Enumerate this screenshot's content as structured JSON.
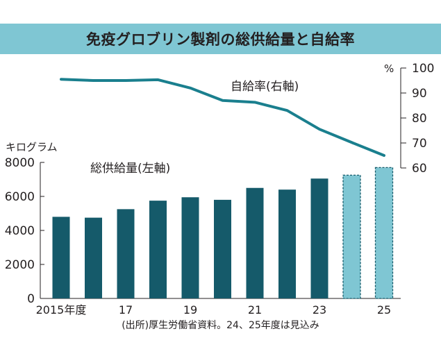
{
  "chart_data": {
    "type": "bar+line",
    "title": "免疫グロブリン製剤の総供給量と自給率",
    "categories": [
      "2015",
      "16",
      "17",
      "18",
      "19",
      "20",
      "21",
      "22",
      "23",
      "24",
      "25"
    ],
    "x_tick_labels": [
      {
        "index": 0,
        "text": "2015年度"
      },
      {
        "index": 2,
        "text": "17"
      },
      {
        "index": 4,
        "text": "19"
      },
      {
        "index": 6,
        "text": "21"
      },
      {
        "index": 8,
        "text": "23"
      },
      {
        "index": 10,
        "text": "25"
      }
    ],
    "bars": {
      "name": "総供給量(左軸)",
      "unit": "キログラム",
      "values": [
        4800,
        4750,
        5250,
        5750,
        5950,
        5800,
        6500,
        6400,
        7050,
        7250,
        7700
      ],
      "projected": [
        false,
        false,
        false,
        false,
        false,
        false,
        false,
        false,
        false,
        true,
        true
      ],
      "ylim": [
        0,
        8000
      ],
      "yticks": [
        0,
        2000,
        4000,
        6000,
        8000
      ]
    },
    "line": {
      "name": "自給率(右軸)",
      "unit": "%",
      "values": [
        95.5,
        95,
        95,
        95.3,
        92,
        87,
        86.3,
        83,
        75.5,
        70.2,
        65
      ],
      "ylim": [
        60,
        100
      ],
      "yticks": [
        60,
        70,
        80,
        90,
        100
      ]
    },
    "colors": {
      "bar": "#155a6a",
      "bar_projected": "#7fc6d3",
      "line": "#1a7f8e",
      "title_band": "#7fc6d3"
    },
    "source_note": "(出所)厚生労働省資料。24、25年度は見込み"
  }
}
